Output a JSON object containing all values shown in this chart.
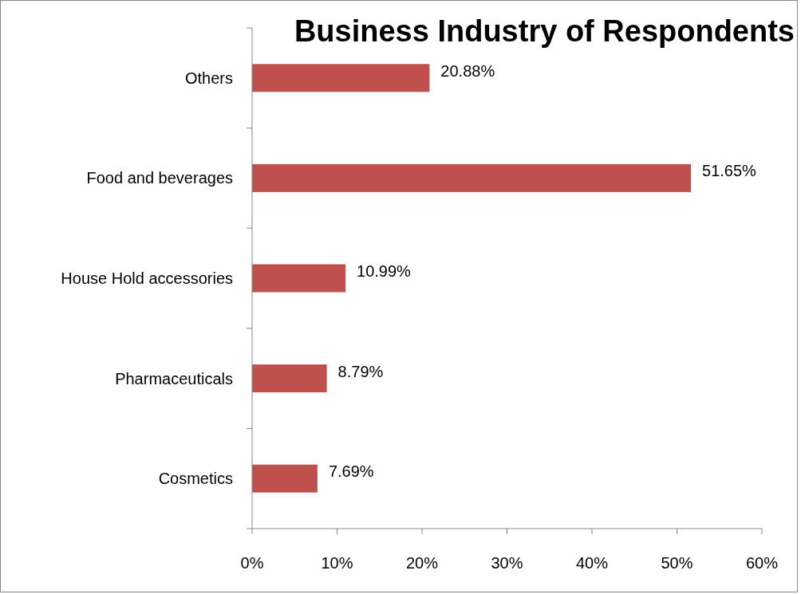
{
  "chart_data": {
    "type": "bar",
    "orientation": "horizontal",
    "title": "Business Industry of Respondents",
    "categories": [
      "Others",
      "Food and beverages",
      "House Hold accessories",
      "Pharmaceuticals",
      "Cosmetics"
    ],
    "values": [
      20.88,
      51.65,
      10.99,
      8.79,
      7.69
    ],
    "value_labels": [
      "20.88%",
      "51.65%",
      "10.99%",
      "8.79%",
      "7.69%"
    ],
    "color": "#c0504d",
    "xlim": [
      0,
      60
    ],
    "xticks": [
      {
        "value": 0,
        "label": "0%"
      },
      {
        "value": 10,
        "label": "10%"
      },
      {
        "value": 20,
        "label": "20%"
      },
      {
        "value": 30,
        "label": "30%"
      },
      {
        "value": 40,
        "label": "40%"
      },
      {
        "value": 50,
        "label": "50%"
      },
      {
        "value": 60,
        "label": "60%"
      }
    ],
    "grid": false
  }
}
